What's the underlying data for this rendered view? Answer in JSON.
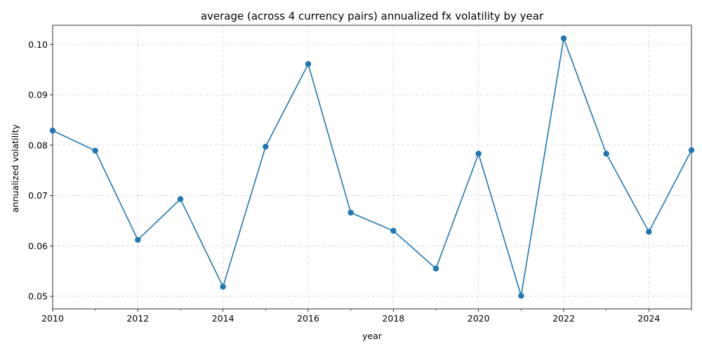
{
  "chart_data": {
    "type": "line",
    "title": "average (across 4 currency pairs) annualized fx volatility by year",
    "xlabel": "year",
    "ylabel": "annualized volatility",
    "x": [
      2010,
      2011,
      2012,
      2013,
      2014,
      2015,
      2016,
      2017,
      2018,
      2019,
      2020,
      2021,
      2022,
      2023,
      2024,
      2025
    ],
    "series": [
      {
        "values": [
          0.0829,
          0.0789,
          0.0612,
          0.0693,
          0.0519,
          0.0797,
          0.0961,
          0.0666,
          0.063,
          0.0555,
          0.0783,
          0.0501,
          0.1012,
          0.0783,
          0.0628,
          0.079
        ]
      }
    ],
    "xlim": [
      2010,
      2025
    ],
    "ylim": [
      0.0475,
      0.1038
    ],
    "x_ticks": [
      "2010",
      "2012",
      "2014",
      "2016",
      "2018",
      "2020",
      "2022",
      "2024"
    ],
    "y_ticks": [
      "0.05",
      "0.06",
      "0.07",
      "0.08",
      "0.09",
      "0.10"
    ],
    "grid": true,
    "legend": "none",
    "colors": {
      "line": "#1f77b4",
      "grid": "#d3d3d3"
    }
  }
}
